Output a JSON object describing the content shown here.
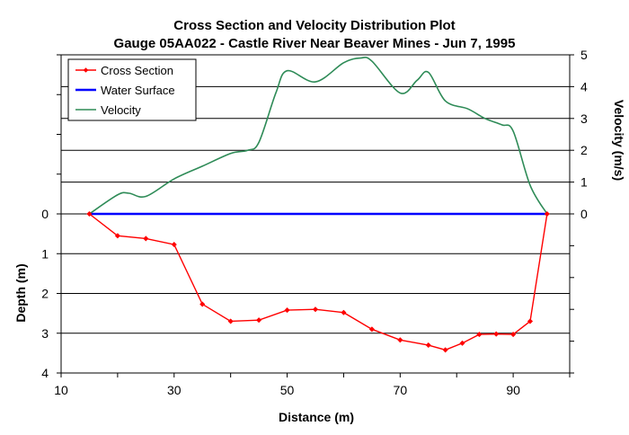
{
  "chart_data": {
    "type": "line",
    "title": "Cross Section and Velocity Distribution Plot",
    "subtitle": "Gauge 05AA022 - Castle River Near Beaver Mines - Jun 7, 1995",
    "xlabel": "Distance (m)",
    "ylabel_left": "Depth (m)",
    "ylabel_right": "Velocity (m/s)",
    "xlim": [
      10,
      100
    ],
    "x_ticks": [
      "10",
      "30",
      "50",
      "70",
      "90"
    ],
    "depth_ticks": [
      "0",
      "1",
      "2",
      "3",
      "4"
    ],
    "velocity_ticks": [
      "0",
      "1",
      "2",
      "3",
      "4",
      "5"
    ],
    "depth_range": [
      0,
      4
    ],
    "velocity_range": [
      0,
      5
    ],
    "grid": true,
    "legend_position": "top-left",
    "series": [
      {
        "name": "Cross Section",
        "color": "#ff0000",
        "axis": "depth",
        "marker": "diamond",
        "x": [
          15,
          20,
          25,
          30,
          35,
          40,
          45,
          50,
          55,
          60,
          65,
          70,
          75,
          78,
          81,
          84,
          87,
          90,
          93,
          96
        ],
        "y": [
          0,
          0.55,
          0.62,
          0.77,
          2.27,
          2.7,
          2.67,
          2.42,
          2.4,
          2.48,
          2.9,
          3.17,
          3.3,
          3.42,
          3.25,
          3.03,
          3.02,
          3.03,
          2.7,
          0
        ]
      },
      {
        "name": "Water Surface",
        "color": "#0000ff",
        "axis": "depth",
        "x": [
          15,
          96
        ],
        "y": [
          0,
          0
        ]
      },
      {
        "name": "Velocity",
        "color": "#2e8b57",
        "axis": "velocity",
        "x": [
          15,
          20,
          22,
          25,
          30,
          35,
          40,
          43,
          45,
          48,
          50,
          55,
          60,
          63,
          65,
          70,
          73,
          75,
          78,
          82,
          85,
          88,
          90,
          93,
          96
        ],
        "y": [
          0,
          0.6,
          0.65,
          0.55,
          1.1,
          1.5,
          1.9,
          2.0,
          2.25,
          3.8,
          4.5,
          4.15,
          4.75,
          4.9,
          4.8,
          3.8,
          4.2,
          4.45,
          3.55,
          3.3,
          3.0,
          2.8,
          2.6,
          0.9,
          0
        ]
      }
    ]
  }
}
